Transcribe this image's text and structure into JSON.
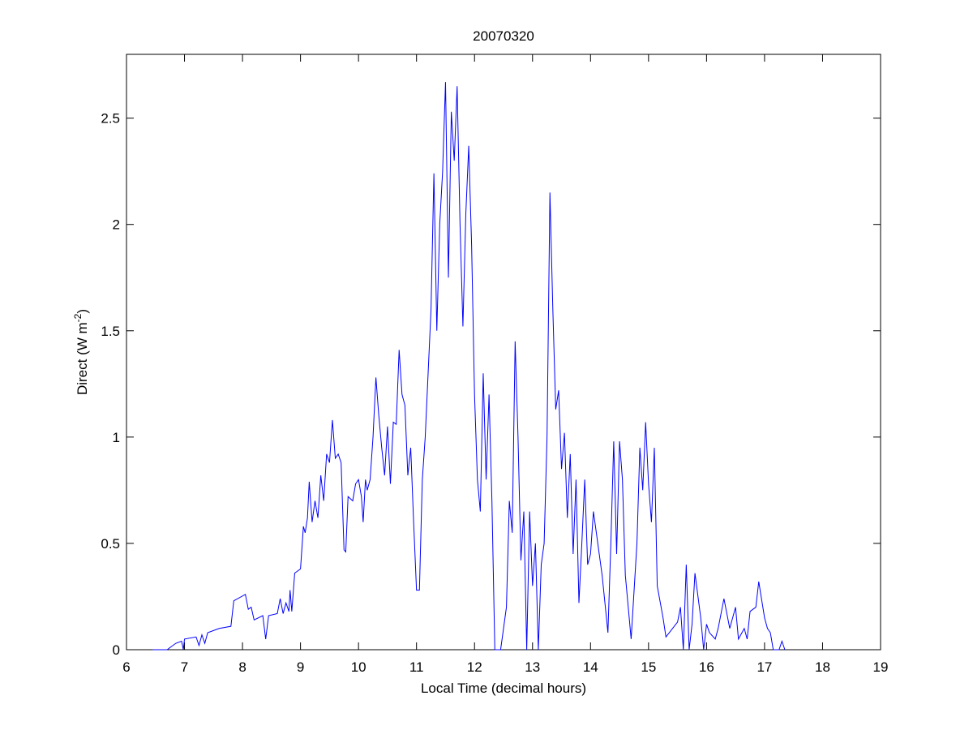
{
  "chart_data": {
    "type": "line",
    "title": "20070320",
    "xlabel": "Local Time (decimal hours)",
    "ylabel": {
      "text": "Direct (W m",
      "superscript": "-2",
      "suffix": ")"
    },
    "color": "#0000ff",
    "xlim": [
      6,
      19
    ],
    "xticks": [
      6,
      7,
      8,
      9,
      10,
      11,
      12,
      13,
      14,
      15,
      16,
      17,
      18,
      19
    ],
    "ylim": [
      0,
      2.8
    ],
    "yticks": [
      0,
      0.5,
      1,
      1.5,
      2,
      2.5
    ],
    "x": [
      6.45,
      6.7,
      6.85,
      6.95,
      6.98,
      7.0,
      7.2,
      7.25,
      7.3,
      7.35,
      7.4,
      7.6,
      7.8,
      7.85,
      8.05,
      8.1,
      8.15,
      8.2,
      8.35,
      8.4,
      8.45,
      8.6,
      8.65,
      8.7,
      8.75,
      8.8,
      8.82,
      8.85,
      8.9,
      9.0,
      9.05,
      9.08,
      9.12,
      9.15,
      9.2,
      9.25,
      9.3,
      9.35,
      9.4,
      9.45,
      9.5,
      9.55,
      9.6,
      9.65,
      9.7,
      9.75,
      9.78,
      9.82,
      9.9,
      9.95,
      10.0,
      10.05,
      10.08,
      10.12,
      10.15,
      10.2,
      10.25,
      10.3,
      10.35,
      10.4,
      10.45,
      10.5,
      10.55,
      10.6,
      10.65,
      10.7,
      10.75,
      10.8,
      10.85,
      10.9,
      10.95,
      11.0,
      11.05,
      11.1,
      11.15,
      11.2,
      11.25,
      11.3,
      11.35,
      11.4,
      11.45,
      11.5,
      11.55,
      11.6,
      11.65,
      11.7,
      11.75,
      11.8,
      11.85,
      11.9,
      11.95,
      12.0,
      12.05,
      12.1,
      12.15,
      12.2,
      12.25,
      12.3,
      12.35,
      12.45,
      12.5,
      12.55,
      12.6,
      12.65,
      12.7,
      12.75,
      12.8,
      12.85,
      12.9,
      12.95,
      13.0,
      13.05,
      13.1,
      13.15,
      13.2,
      13.25,
      13.3,
      13.35,
      13.4,
      13.45,
      13.5,
      13.55,
      13.6,
      13.65,
      13.7,
      13.75,
      13.8,
      13.85,
      13.9,
      13.95,
      14.0,
      14.05,
      14.1,
      14.2,
      14.3,
      14.35,
      14.4,
      14.45,
      14.5,
      14.55,
      14.6,
      14.7,
      14.8,
      14.85,
      14.9,
      14.95,
      15.0,
      15.05,
      15.1,
      15.15,
      15.25,
      15.3,
      15.5,
      15.55,
      15.6,
      15.65,
      15.7,
      15.75,
      15.8,
      15.9,
      15.95,
      16.0,
      16.05,
      16.15,
      16.2,
      16.3,
      16.4,
      16.5,
      16.55,
      16.65,
      16.7,
      16.75,
      16.85,
      16.9,
      17.0,
      17.05,
      17.1,
      17.15,
      17.25,
      17.3,
      17.35
    ],
    "values": [
      0,
      0,
      0.03,
      0.04,
      0.0,
      0.05,
      0.06,
      0.02,
      0.07,
      0.03,
      0.08,
      0.1,
      0.11,
      0.23,
      0.26,
      0.19,
      0.2,
      0.14,
      0.16,
      0.05,
      0.16,
      0.17,
      0.24,
      0.17,
      0.22,
      0.18,
      0.28,
      0.18,
      0.36,
      0.38,
      0.58,
      0.55,
      0.62,
      0.79,
      0.6,
      0.7,
      0.62,
      0.82,
      0.7,
      0.92,
      0.88,
      1.08,
      0.9,
      0.92,
      0.88,
      0.47,
      0.46,
      0.72,
      0.7,
      0.78,
      0.8,
      0.72,
      0.6,
      0.8,
      0.75,
      0.8,
      1.0,
      1.28,
      1.1,
      0.95,
      0.82,
      1.05,
      0.78,
      1.07,
      1.06,
      1.41,
      1.2,
      1.15,
      0.82,
      0.95,
      0.6,
      0.28,
      0.28,
      0.8,
      1.0,
      1.3,
      1.6,
      2.24,
      1.5,
      2.0,
      2.25,
      2.67,
      1.75,
      2.53,
      2.3,
      2.65,
      2.0,
      1.52,
      2.05,
      2.37,
      1.9,
      1.2,
      0.8,
      0.65,
      1.3,
      0.8,
      1.2,
      0.7,
      0.0,
      0.0,
      0.1,
      0.2,
      0.7,
      0.55,
      1.45,
      1.0,
      0.42,
      0.65,
      0.0,
      0.65,
      0.3,
      0.5,
      0.0,
      0.4,
      0.5,
      1.0,
      2.15,
      1.6,
      1.13,
      1.22,
      0.85,
      1.02,
      0.62,
      0.92,
      0.45,
      0.8,
      0.22,
      0.5,
      0.8,
      0.4,
      0.45,
      0.65,
      0.55,
      0.35,
      0.08,
      0.5,
      0.98,
      0.45,
      0.98,
      0.8,
      0.35,
      0.05,
      0.5,
      0.95,
      0.75,
      1.07,
      0.78,
      0.6,
      0.95,
      0.3,
      0.15,
      0.06,
      0.13,
      0.2,
      0.0,
      0.4,
      0.0,
      0.12,
      0.36,
      0.15,
      0.0,
      0.12,
      0.08,
      0.05,
      0.1,
      0.24,
      0.1,
      0.2,
      0.05,
      0.1,
      0.05,
      0.18,
      0.2,
      0.32,
      0.15,
      0.1,
      0.08,
      0.0,
      0.0,
      0.04,
      0.0
    ]
  }
}
